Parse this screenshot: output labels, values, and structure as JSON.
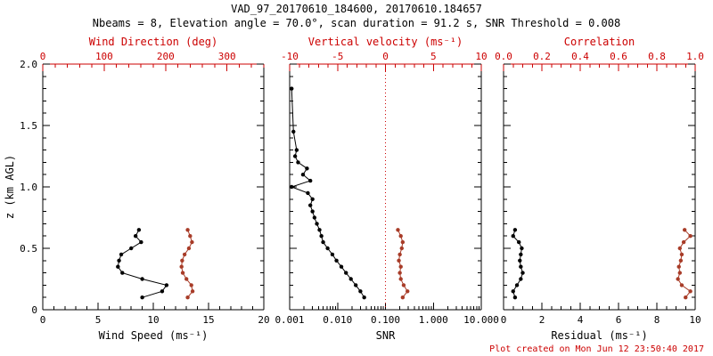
{
  "header": {
    "title": "VAD_97_20170610_184600, 20170610.184657",
    "subtitle": "Nbeams = 8, Elevation angle = 70.0°, scan duration = 91.2 s, SNR Threshold = 0.008"
  },
  "footer": {
    "created": "Plot created on Mon Jun 12 23:50:40 2017"
  },
  "colors": {
    "primary": "#000000",
    "secondary": "#a83c28",
    "secondary_axis": "#cc0000"
  },
  "y_axis": {
    "label": "z (km AGL)",
    "min": 0,
    "max": 2,
    "ticks": [
      0,
      0.5,
      1,
      1.5,
      2
    ],
    "tick_labels": [
      "0",
      "0.5",
      "1.0",
      "1.5",
      "2.0"
    ],
    "minor_step": 0.1
  },
  "chart_data": [
    {
      "id": "wind",
      "type": "line",
      "bottom_axis": {
        "label": "Wind Speed (ms⁻¹)",
        "scale": "linear",
        "min": 0,
        "max": 20,
        "ticks": [
          0,
          5,
          10,
          15,
          20
        ],
        "tick_labels": [
          "0",
          "5",
          "10",
          "15",
          "20"
        ],
        "minor_step": 1
      },
      "top_axis": {
        "label": "Wind Direction (deg)",
        "scale": "linear",
        "min": 0,
        "max": 360,
        "ticks": [
          0,
          100,
          200,
          300
        ],
        "tick_labels": [
          "0",
          "100",
          "200",
          "300"
        ],
        "minor_step": 20
      },
      "series": [
        {
          "name": "wind-speed",
          "axis": "bottom",
          "color_key": "primary",
          "z": [
            0.1,
            0.15,
            0.2,
            0.25,
            0.3,
            0.35,
            0.4,
            0.45,
            0.5,
            0.55,
            0.6,
            0.65
          ],
          "values": [
            9.0,
            10.8,
            11.2,
            9.0,
            7.2,
            6.8,
            6.9,
            7.1,
            8.0,
            8.9,
            8.4,
            8.7
          ]
        },
        {
          "name": "wind-direction",
          "axis": "top",
          "color_key": "secondary",
          "z": [
            0.1,
            0.15,
            0.2,
            0.25,
            0.3,
            0.35,
            0.4,
            0.45,
            0.5,
            0.55,
            0.6,
            0.65
          ],
          "values": [
            236,
            244,
            242,
            234,
            228,
            226,
            227,
            231,
            238,
            243,
            240,
            236
          ]
        }
      ]
    },
    {
      "id": "snr",
      "type": "line",
      "bottom_axis": {
        "label": "SNR",
        "scale": "log",
        "min": 0.001,
        "max": 10,
        "ticks": [
          0.001,
          0.01,
          0.1,
          1,
          10
        ],
        "tick_labels": [
          "0.001",
          "0.010",
          "0.100",
          "1.000",
          "10.000"
        ]
      },
      "top_axis": {
        "label": "Vertical velocity (ms⁻¹)",
        "scale": "linear",
        "min": -10,
        "max": 10,
        "ticks": [
          -10,
          -5,
          0,
          5,
          10
        ],
        "tick_labels": [
          "-10",
          "-5",
          "0",
          "5",
          "10"
        ],
        "minor_step": 1,
        "zero_line": 0
      },
      "series": [
        {
          "name": "snr",
          "axis": "bottom",
          "color_key": "primary",
          "z": [
            0.1,
            0.15,
            0.2,
            0.25,
            0.3,
            0.35,
            0.4,
            0.45,
            0.5,
            0.55,
            0.6,
            0.65,
            0.7,
            0.75,
            0.8,
            0.85,
            0.9,
            0.95,
            1.0,
            1.05,
            1.1,
            1.15,
            1.2,
            1.25,
            1.3,
            1.45,
            1.8
          ],
          "values": [
            0.036,
            0.03,
            0.024,
            0.019,
            0.015,
            0.012,
            0.0095,
            0.0078,
            0.0062,
            0.005,
            0.0046,
            0.0042,
            0.0037,
            0.0033,
            0.003,
            0.0027,
            0.003,
            0.0024,
            0.0011,
            0.0027,
            0.0019,
            0.0023,
            0.0015,
            0.0013,
            0.0014,
            0.0012,
            0.0011
          ]
        },
        {
          "name": "vertical-velocity",
          "axis": "top",
          "color_key": "secondary",
          "z": [
            0.1,
            0.15,
            0.2,
            0.25,
            0.3,
            0.35,
            0.4,
            0.45,
            0.5,
            0.55,
            0.6,
            0.65
          ],
          "values": [
            1.8,
            2.3,
            1.9,
            1.6,
            1.5,
            1.6,
            1.4,
            1.5,
            1.7,
            1.8,
            1.6,
            1.3
          ]
        }
      ]
    },
    {
      "id": "residual",
      "type": "line",
      "bottom_axis": {
        "label": "Residual (ms⁻¹)",
        "scale": "linear",
        "min": 0,
        "max": 10,
        "ticks": [
          0,
          2,
          4,
          6,
          8,
          10
        ],
        "tick_labels": [
          "0",
          "2",
          "4",
          "6",
          "8",
          "10"
        ],
        "minor_step": 0.5
      },
      "top_axis": {
        "label": "Correlation",
        "scale": "linear",
        "min": 0,
        "max": 1,
        "ticks": [
          0,
          0.2,
          0.4,
          0.6,
          0.8,
          1
        ],
        "tick_labels": [
          "0.0",
          "0.2",
          "0.4",
          "0.6",
          "0.8",
          "1.0"
        ],
        "minor_step": 0.05
      },
      "series": [
        {
          "name": "residual",
          "axis": "bottom",
          "color_key": "primary",
          "z": [
            0.1,
            0.15,
            0.2,
            0.25,
            0.3,
            0.35,
            0.4,
            0.45,
            0.5,
            0.55,
            0.6,
            0.65
          ],
          "values": [
            0.6,
            0.5,
            0.7,
            0.9,
            1.0,
            0.9,
            0.85,
            0.9,
            0.95,
            0.8,
            0.5,
            0.6
          ]
        },
        {
          "name": "correlation",
          "axis": "top",
          "color_key": "secondary",
          "z": [
            0.1,
            0.15,
            0.2,
            0.25,
            0.3,
            0.35,
            0.4,
            0.45,
            0.5,
            0.55,
            0.6,
            0.65
          ],
          "values": [
            0.95,
            0.975,
            0.93,
            0.91,
            0.92,
            0.915,
            0.925,
            0.93,
            0.92,
            0.94,
            0.975,
            0.945
          ]
        }
      ]
    }
  ]
}
